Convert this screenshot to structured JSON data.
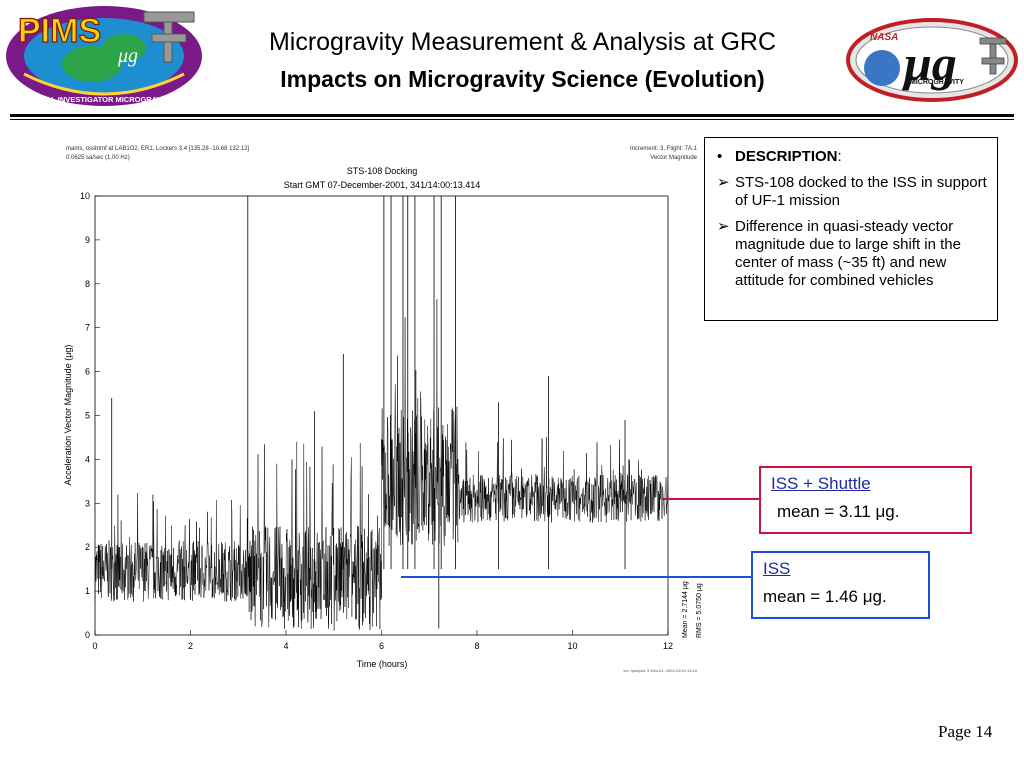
{
  "header": {
    "title_line1": "Microgravity Measurement & Analysis at GRC",
    "title_line2": "Impacts on Microgravity Science (Evolution)"
  },
  "logos": {
    "left": {
      "text": "PIMS",
      "sub": "μg",
      "ring": "PRINCIPAL INVESTIGATOR MICROGRAVITY SERVICES"
    },
    "right": {
      "top": "NASA",
      "mark": "μg",
      "band": "MICROGRAVITY"
    }
  },
  "description": {
    "heading": "DESCRIPTION",
    "heading_suffix": ":",
    "bullet": "•",
    "items": [
      "STS-108 docked to the ISS in support of UF-1 mission",
      "Difference in quasi-steady vector magnitude due to large shift in the center of mass (~35 ft) and new attitude for combined vehicles"
    ],
    "arrow": "➢"
  },
  "callouts": {
    "shuttle": {
      "label": "ISS + Shuttle",
      "value": "mean = 3.11 μg."
    },
    "iss": {
      "label": "ISS",
      "value": "mean = 1.46 μg."
    }
  },
  "page": "Page 14",
  "colors": {
    "red": "#d0113f",
    "blue": "#1f4fd8"
  },
  "chart_data": {
    "type": "line",
    "header_left": [
      "mams, ossbtmf at LAB1O2, ER1, Lockers 3,4 [135.28 -10.68 132.12]",
      "0.0625 sa/sec (1.00 Hz)"
    ],
    "header_right": [
      "Increment: 3, Flight: 7A.1",
      "Vector Magnitude"
    ],
    "title": "STS-108 Docking",
    "subtitle": "Start GMT 07-December-2001, 341/14:00:13.414",
    "xlabel": "Time (hours)",
    "ylabel": "Acceleration Vector Magnitude  (μg)",
    "xlim": [
      0,
      12
    ],
    "ylim": [
      0,
      10
    ],
    "xticks": [
      0,
      2,
      4,
      6,
      8,
      10,
      12
    ],
    "yticks": [
      0,
      1,
      2,
      3,
      4,
      5,
      6,
      7,
      8,
      9,
      10
    ],
    "stats": [
      "Mean = 2.7144 μg",
      "RMS = 5.0750 μg"
    ],
    "footer": "ver. ipadpsd, 9-Dec-01, 2001/12/10:13:44",
    "series": [
      {
        "segments": [
          {
            "x": [
              0,
              3.2
            ],
            "base": 1.46,
            "noise": 0.7
          },
          {
            "x": [
              3.2,
              6.0
            ],
            "base": 1.3,
            "noise": 1.2
          },
          {
            "x": [
              6.0,
              7.6
            ],
            "base": 3.6,
            "noise": 1.6
          },
          {
            "x": [
              7.6,
              12
            ],
            "base": 3.11,
            "noise": 0.55
          }
        ],
        "spikes": [
          {
            "x": 3.2,
            "y": 10
          },
          {
            "x": 6.05,
            "y": 10
          },
          {
            "x": 6.2,
            "y": 10
          },
          {
            "x": 6.45,
            "y": 10
          },
          {
            "x": 6.55,
            "y": 10
          },
          {
            "x": 6.7,
            "y": 10
          },
          {
            "x": 7.1,
            "y": 10
          },
          {
            "x": 7.25,
            "y": 10
          },
          {
            "x": 7.55,
            "y": 10
          },
          {
            "x": 5.2,
            "y": 6.4
          },
          {
            "x": 4.6,
            "y": 5.1
          },
          {
            "x": 0.35,
            "y": 5.4
          },
          {
            "x": 9.5,
            "y": 5.9
          },
          {
            "x": 8.45,
            "y": 5.3
          },
          {
            "x": 11.1,
            "y": 4.9
          }
        ],
        "dips": [
          {
            "x": 7.2,
            "y": 0.15
          }
        ]
      }
    ]
  }
}
